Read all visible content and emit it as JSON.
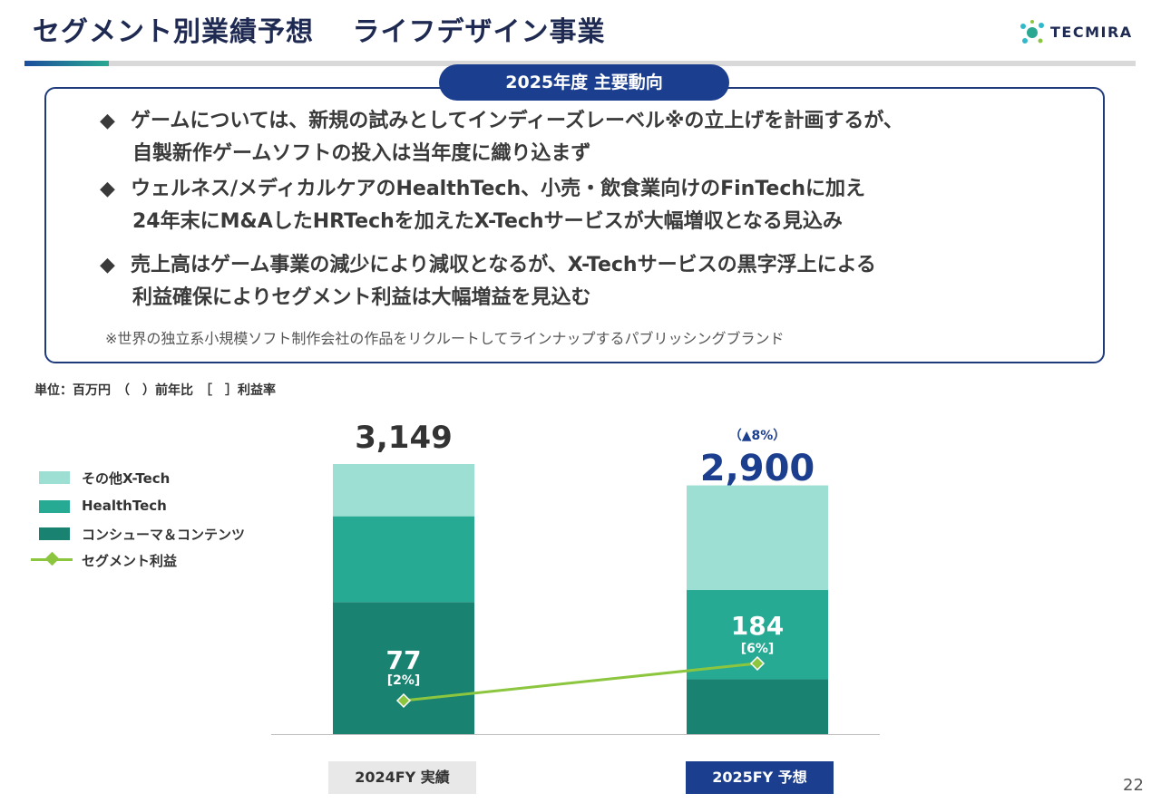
{
  "header": {
    "title": "セグメント別業績予想　 ライフデザイン事業",
    "logo_text": "TECMIRA"
  },
  "highlights": {
    "label": "2025年度 主要動向",
    "bullets": [
      {
        "marker": "◆",
        "line1": "ゲームについては、新規の試みとしてインディーズレーベル※の立上げを計画するが、",
        "line2": "自製新作ゲームソフトの投入は当年度に織り込まず"
      },
      {
        "marker": "◆",
        "line1": "ウェルネス/メディカルケアのHealthTech、小売・飲食業向けのFinTechに加え",
        "line2": "24年末にM&AしたHRTechを加えたX-Techサービスが大幅増収となる見込み"
      },
      {
        "marker": "◆",
        "line1": "売上高はゲーム事業の減少により減収となるが、X-Techサービスの黒字浮上による",
        "line2": "利益確保によりセグメント利益は大幅増益を見込む"
      }
    ],
    "footnote": "※世界の独立系小規模ソフト制作会社の作品をリクルートしてラインナップするパブリッシングブランド"
  },
  "units_note": "単位：百万円　（　）前年比　［　］利益率",
  "colors": {
    "other_xtech": "#9ddfd3",
    "healthtech": "#26aa94",
    "consumer": "#198270",
    "profit_line": "#8cc63f",
    "title_navy": "#1f2a52",
    "accent_blue": "#1b3e8f"
  },
  "legend": {
    "items": [
      {
        "label": "その他X-Tech",
        "kind": "swatch",
        "color": "#9ddfd3"
      },
      {
        "label": " HealthTech",
        "kind": "swatch",
        "color": "#26aa94"
      },
      {
        "label": "コンシューマ＆コンテンツ",
        "kind": "swatch",
        "color": "#198270"
      },
      {
        "label": "セグメント利益",
        "kind": "line",
        "color": "#8cc63f"
      }
    ]
  },
  "chart_data": {
    "type": "bar",
    "stacked": true,
    "categories": [
      "2024FY 実績",
      "2025FY 予想"
    ],
    "series": [
      {
        "name": "コンシューマ＆コンテンツ",
        "values": [
          1540,
          640
        ]
      },
      {
        "name": " HealthTech",
        "values": [
          1000,
          1040
        ]
      },
      {
        "name": "その他X-Tech",
        "values": [
          609,
          1220
        ]
      }
    ],
    "totals": [
      3149,
      2900
    ],
    "total_labels": [
      "3,149",
      "2,900"
    ],
    "yoy_labels": [
      "",
      "（▲8%）"
    ],
    "profit": {
      "name": "セグメント利益",
      "values": [
        77,
        184
      ],
      "labels": [
        "77",
        "184"
      ],
      "margin_labels": [
        "[2%]",
        "[6%]"
      ]
    },
    "ylim": [
      0,
      3149
    ]
  },
  "page_number": "22"
}
